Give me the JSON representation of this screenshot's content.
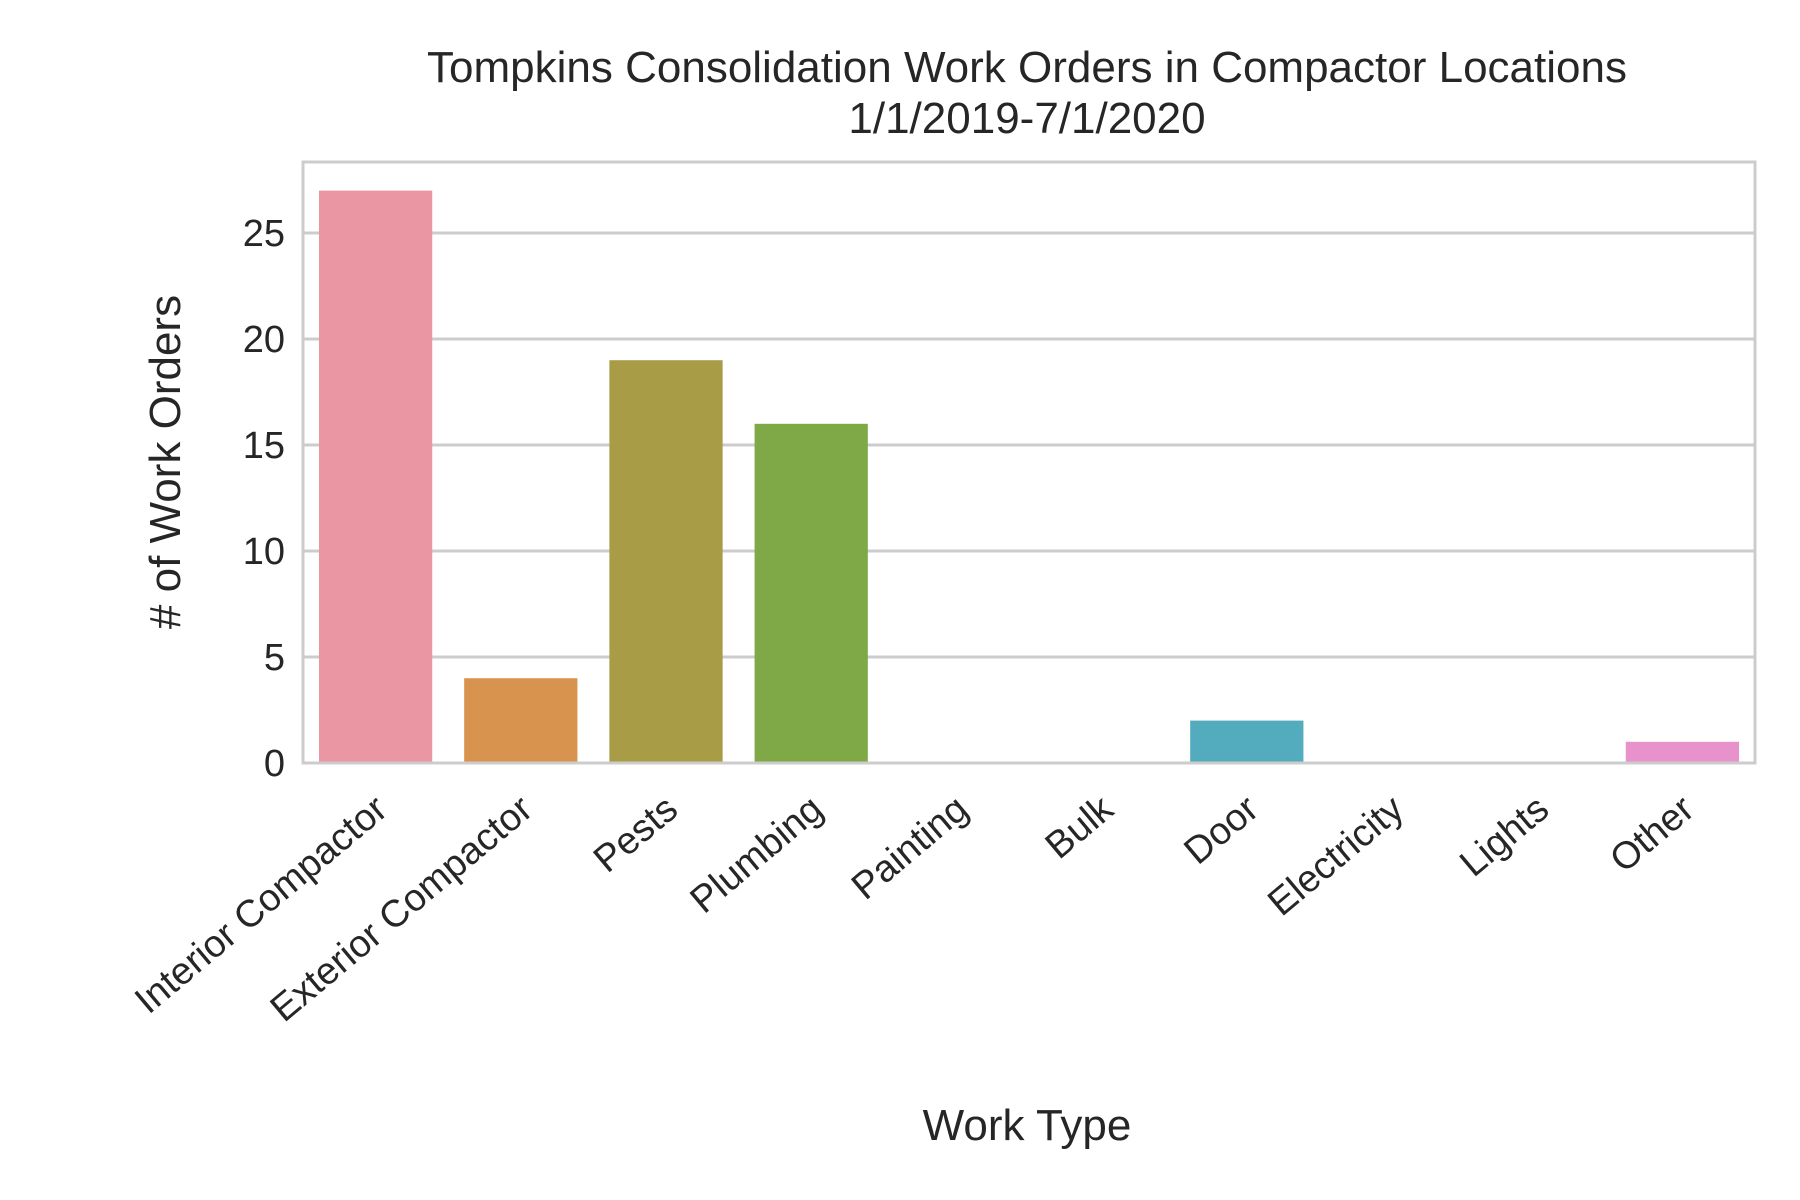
{
  "chart_data": {
    "type": "bar",
    "title": "Tompkins Consolidation Work Orders in Compactor Locations",
    "subtitle": "1/1/2019-7/1/2020",
    "xlabel": "Work Type",
    "ylabel": "# of Work Orders",
    "categories": [
      "Interior Compactor",
      "Exterior Compactor",
      "Pests",
      "Plumbing",
      "Painting",
      "Bulk",
      "Door",
      "Electricity",
      "Lights",
      "Other"
    ],
    "values": [
      27,
      4,
      19,
      16,
      0,
      0,
      2,
      0,
      0,
      1
    ],
    "colors": [
      "#ea96a3",
      "#d8944f",
      "#a99c47",
      "#7ea946",
      "#4fae85",
      "#53ad9e",
      "#52acbe",
      "#9aa6ea",
      "#d18fe8",
      "#e892cc"
    ],
    "ylim": [
      0,
      28.35
    ],
    "yticks": [
      0,
      5,
      10,
      15,
      20,
      25
    ],
    "grid": "horizontal",
    "legend": "none"
  }
}
